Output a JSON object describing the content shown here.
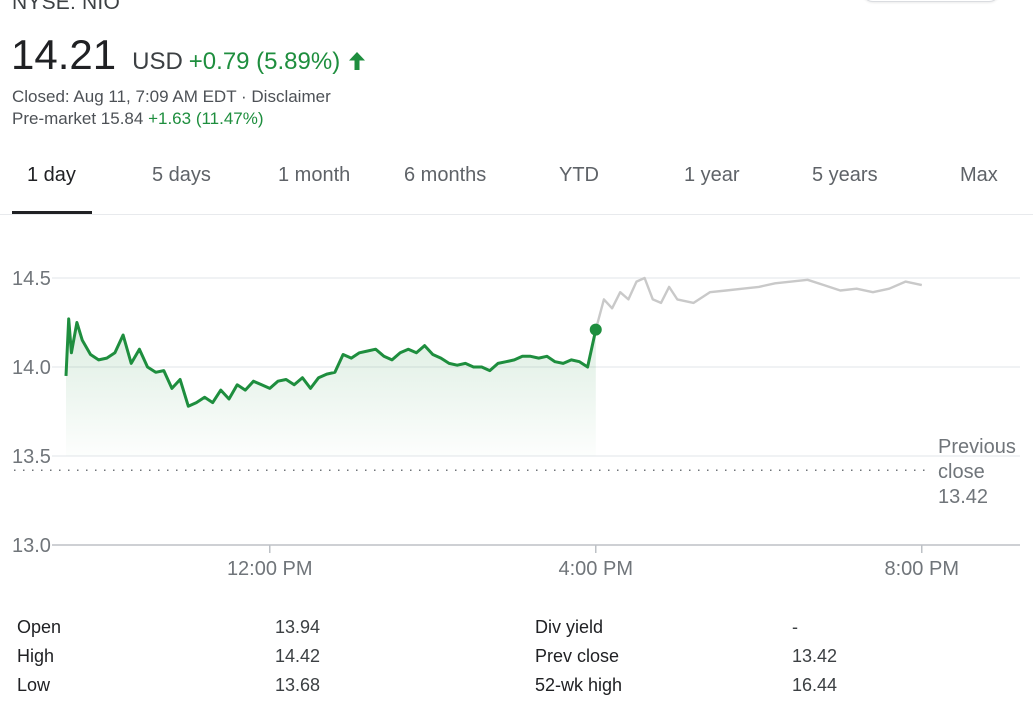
{
  "header": {
    "exchange": "NYSE: NIO",
    "price": "14.21",
    "currency": "USD",
    "change": "+0.79 (5.89%)",
    "closed_text": "Closed: Aug 11, 7:09 AM EDT",
    "separator": " · ",
    "disclaimer": "Disclaimer",
    "premarket_label": "Pre-market 15.84",
    "premarket_change": "+1.63 (11.47%)"
  },
  "tabs": [
    "1 day",
    "5 days",
    "1 month",
    "6 months",
    "YTD",
    "1 year",
    "5 years",
    "Max"
  ],
  "active_tab": "1 day",
  "colors": {
    "positive": "#1e8e3e",
    "extended_hours": "#c9c9c9",
    "grid": "#e8eaed",
    "text_muted": "#70757a"
  },
  "chart_data": {
    "type": "line",
    "y_ticks": [
      "14.5",
      "14.0",
      "13.5",
      "13.0"
    ],
    "x_ticks": [
      "12:00 PM",
      "4:00 PM",
      "8:00 PM"
    ],
    "ylim": [
      13.0,
      14.75
    ],
    "prev_close_label": [
      "Previous",
      "close",
      "13.42"
    ],
    "prev_close_value": 13.42,
    "series": [
      {
        "segment": "regular",
        "x": [
          "9:30",
          "9:32",
          "9:34",
          "9:38",
          "9:42",
          "9:48",
          "9:54",
          "10:00",
          "10:06",
          "10:12",
          "10:18",
          "10:24",
          "10:30",
          "10:36",
          "10:42",
          "10:48",
          "10:54",
          "11:00",
          "11:06",
          "11:12",
          "11:18",
          "11:24",
          "11:30",
          "11:36",
          "11:42",
          "11:48",
          "11:54",
          "12:00",
          "12:06",
          "12:12",
          "12:18",
          "12:24",
          "12:30",
          "12:36",
          "12:42",
          "12:48",
          "12:54",
          "13:00",
          "13:06",
          "13:12",
          "13:18",
          "13:24",
          "13:30",
          "13:36",
          "13:42",
          "13:48",
          "13:54",
          "14:00",
          "14:06",
          "14:12",
          "14:18",
          "14:24",
          "14:30",
          "14:36",
          "14:42",
          "14:48",
          "14:54",
          "15:00",
          "15:06",
          "15:12",
          "15:18",
          "15:24",
          "15:30",
          "15:36",
          "15:42",
          "15:48",
          "15:54",
          "16:00"
        ],
        "values": [
          13.95,
          14.27,
          14.08,
          14.25,
          14.15,
          14.07,
          14.04,
          14.05,
          14.08,
          14.18,
          14.02,
          14.1,
          14.0,
          13.97,
          13.98,
          13.88,
          13.93,
          13.78,
          13.8,
          13.83,
          13.8,
          13.87,
          13.82,
          13.9,
          13.87,
          13.92,
          13.9,
          13.88,
          13.92,
          13.93,
          13.9,
          13.94,
          13.88,
          13.94,
          13.96,
          13.97,
          14.07,
          14.05,
          14.08,
          14.09,
          14.1,
          14.06,
          14.04,
          14.08,
          14.1,
          14.08,
          14.12,
          14.07,
          14.05,
          14.02,
          14.01,
          14.02,
          14.0,
          14.0,
          13.98,
          14.02,
          14.03,
          14.04,
          14.06,
          14.06,
          14.05,
          14.06,
          14.03,
          14.02,
          14.04,
          14.03,
          14.0,
          14.21
        ]
      },
      {
        "segment": "after_hours",
        "x": [
          "16:00",
          "16:06",
          "16:12",
          "16:18",
          "16:24",
          "16:30",
          "16:36",
          "16:42",
          "16:48",
          "16:54",
          "17:00",
          "17:12",
          "17:24",
          "17:36",
          "17:48",
          "18:00",
          "18:12",
          "18:24",
          "18:36",
          "18:48",
          "19:00",
          "19:12",
          "19:24",
          "19:36",
          "19:48",
          "20:00"
        ],
        "values": [
          14.21,
          14.38,
          14.33,
          14.42,
          14.38,
          14.48,
          14.5,
          14.38,
          14.36,
          14.45,
          14.38,
          14.36,
          14.42,
          14.43,
          14.44,
          14.45,
          14.47,
          14.48,
          14.49,
          14.46,
          14.43,
          14.44,
          14.42,
          14.44,
          14.48,
          14.46
        ]
      }
    ]
  },
  "stats": [
    {
      "label": "Open",
      "value": "13.94"
    },
    {
      "label": "High",
      "value": "14.42"
    },
    {
      "label": "Low",
      "value": "13.68"
    },
    {
      "label": "Div yield",
      "value": "-"
    },
    {
      "label": "Prev close",
      "value": "13.42"
    },
    {
      "label": "52-wk high",
      "value": "16.44"
    }
  ]
}
